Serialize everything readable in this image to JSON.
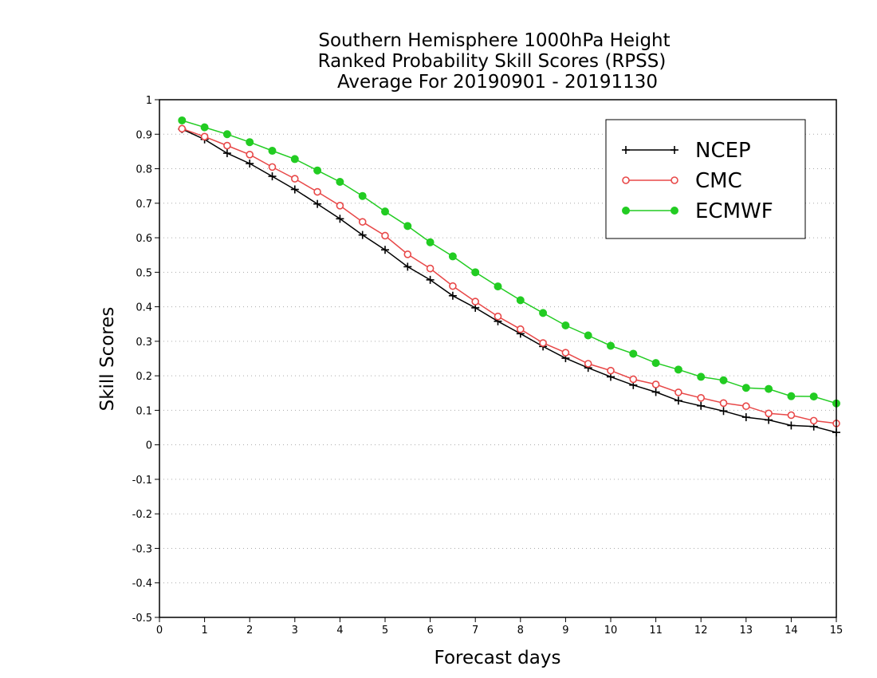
{
  "chart_data": {
    "type": "line",
    "title": [
      "Southern Hemisphere 1000hPa Height",
      "Ranked Probability Skill Scores (RPSS)",
      "Average For 20190901 - 20191130"
    ],
    "xlabel": "Forecast days",
    "ylabel": "Skill Scores",
    "xlim": [
      0,
      15
    ],
    "ylim": [
      -0.5,
      1
    ],
    "x_ticks": [
      "0",
      "1",
      "2",
      "3",
      "4",
      "5",
      "6",
      "7",
      "8",
      "9",
      "10",
      "11",
      "12",
      "13",
      "14",
      "15"
    ],
    "y_ticks": [
      "-0.5",
      "-0.4",
      "-0.3",
      "-0.2",
      "-0.1",
      "0",
      "0.1",
      "0.2",
      "0.3",
      "0.4",
      "0.5",
      "0.6",
      "0.7",
      "0.8",
      "0.9",
      "1"
    ],
    "grid": "horizontal-dotted",
    "legend_position": "top-right",
    "x": [
      0.5,
      1,
      1.5,
      2,
      2.5,
      3,
      3.5,
      4,
      4.5,
      5,
      5.5,
      6,
      6.5,
      7,
      7.5,
      8,
      8.5,
      9,
      9.5,
      10,
      10.5,
      11,
      11.5,
      12,
      12.5,
      13,
      13.5,
      14,
      14.5,
      15
    ],
    "series": [
      {
        "name": "NCEP",
        "color": "#000000",
        "marker": "plus",
        "values": [
          0.915,
          0.885,
          0.845,
          0.815,
          0.778,
          0.74,
          0.698,
          0.655,
          0.608,
          0.565,
          0.516,
          0.478,
          0.432,
          0.397,
          0.358,
          0.322,
          0.285,
          0.251,
          0.223,
          0.197,
          0.173,
          0.153,
          0.128,
          0.113,
          0.098,
          0.08,
          0.072,
          0.056,
          0.053,
          0.036
        ]
      },
      {
        "name": "CMC",
        "color": "#e84848",
        "marker": "open-circle",
        "values": [
          0.916,
          0.893,
          0.867,
          0.841,
          0.805,
          0.771,
          0.733,
          0.693,
          0.646,
          0.606,
          0.552,
          0.511,
          0.46,
          0.415,
          0.372,
          0.335,
          0.295,
          0.267,
          0.235,
          0.215,
          0.19,
          0.175,
          0.152,
          0.136,
          0.121,
          0.112,
          0.091,
          0.086,
          0.07,
          0.062
        ]
      },
      {
        "name": "ECMWF",
        "color": "#22cc22",
        "marker": "filled-circle",
        "values": [
          0.94,
          0.92,
          0.9,
          0.877,
          0.852,
          0.828,
          0.795,
          0.762,
          0.721,
          0.676,
          0.634,
          0.587,
          0.546,
          0.5,
          0.459,
          0.419,
          0.382,
          0.346,
          0.317,
          0.287,
          0.264,
          0.237,
          0.218,
          0.197,
          0.187,
          0.165,
          0.162,
          0.141,
          0.14,
          0.12
        ]
      }
    ]
  }
}
